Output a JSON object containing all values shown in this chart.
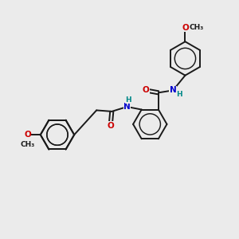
{
  "bg_color": "#ebebeb",
  "atom_colors": {
    "C": "#1a1a1a",
    "N": "#0000cc",
    "O": "#cc0000",
    "H": "#008888"
  },
  "bond_color": "#1a1a1a",
  "bond_width": 1.4,
  "font_size_atom": 7.5,
  "font_size_methyl": 6.5
}
